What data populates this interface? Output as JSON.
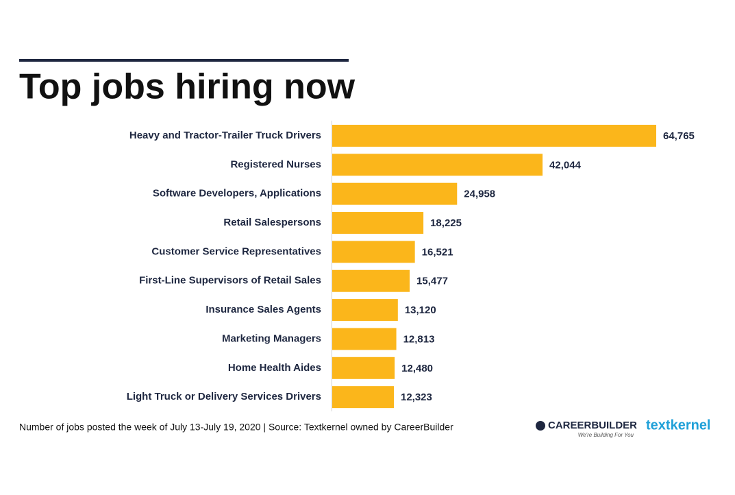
{
  "chart_data": {
    "type": "bar",
    "orientation": "horizontal",
    "title": "Top jobs hiring now",
    "categories": [
      "Heavy and Tractor-Trailer Truck Drivers",
      "Registered Nurses",
      "Software Developers, Applications",
      "Retail Salespersons",
      "Customer Service Representatives",
      "First-Line Supervisors of Retail Sales",
      "Insurance Sales Agents",
      "Marketing Managers",
      "Home Health Aides",
      "Light Truck or Delivery Services Drivers"
    ],
    "values": [
      64765,
      42044,
      24958,
      18225,
      16521,
      15477,
      13120,
      12813,
      12480,
      12323
    ],
    "value_labels": [
      "64,765",
      "42,044",
      "24,958",
      "18,225",
      "16,521",
      "15,477",
      "13,120",
      "12,813",
      "12,480",
      "12,323"
    ],
    "color": "#fbb61b",
    "footnote": "Number of jobs posted the week of July 13-July 19, 2020  |  Source: Textkernel owned by CareerBuilder"
  },
  "branding": {
    "careerbuilder": "CAREERBUILDER",
    "tagline": "We're Building For You",
    "textkernel": "textkernel"
  }
}
